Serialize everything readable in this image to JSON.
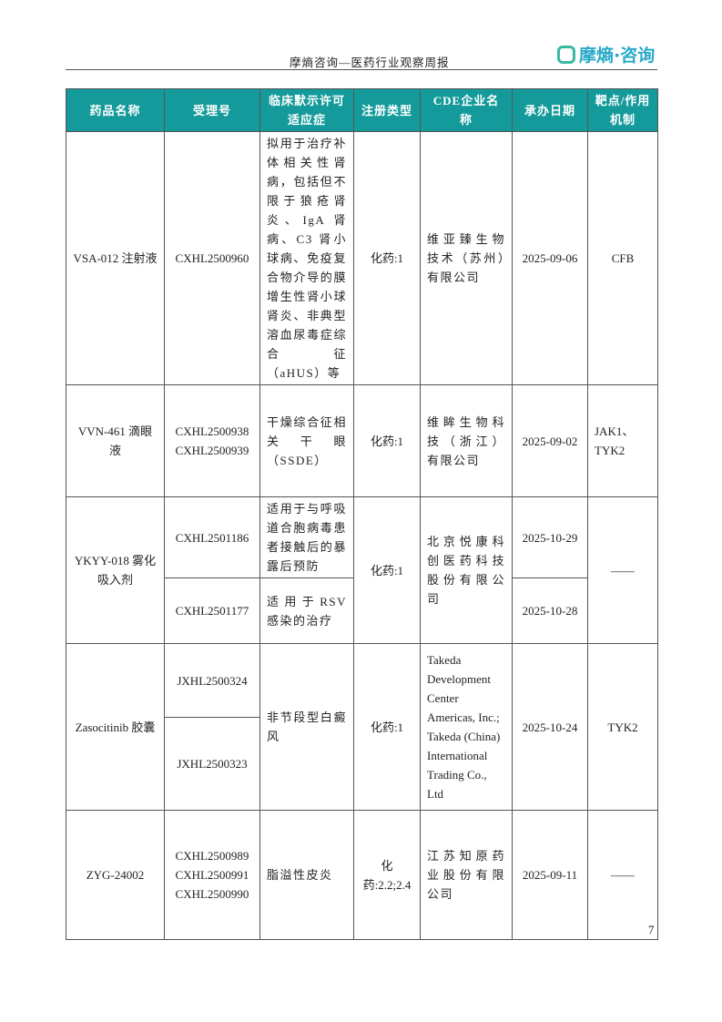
{
  "header": {
    "title": "摩熵咨询—医药行业观察周报",
    "logo": "摩熵·咨询"
  },
  "table": {
    "columns": [
      "药品名称",
      "受理号",
      "临床默示许可适应症",
      "注册类型",
      "CDE企业名称",
      "承办日期",
      "靶点/作用机制"
    ],
    "rows": [
      {
        "drug": "VSA-012 注射液",
        "ids": [
          "CXHL2500960"
        ],
        "indication": "拟用于治疗补体相关性肾病，包括但不限于狼疮肾炎、IgA 肾病、C3 肾小球病、免疫复合物介导的膜增生性肾小球肾炎、非典型溶血尿毒症综合征（aHUS）等",
        "type": "化药:1",
        "company": "维亚臻生物技术（苏州）有限公司",
        "date": "2025-09-06",
        "target": "CFB"
      },
      {
        "drug": "VVN-461 滴眼液",
        "ids": [
          "CXHL2500938",
          "CXHL2500939"
        ],
        "indication": "干燥综合征相关干眼（SSDE）",
        "type": "化药:1",
        "company": "维眸生物科技（浙江）有限公司",
        "date": "2025-09-02",
        "target": "JAK1、TYK2"
      },
      {
        "drug": "YKYY-018 雾化吸入剂",
        "ids": [
          "CXHL2501186",
          "CXHL2501177"
        ],
        "indications": [
          "适用于与呼吸道合胞病毒患者接触后的暴露后预防",
          "适用于RSV 感染的治疗"
        ],
        "type": "化药:1",
        "company": "北京悦康科创医药科技股份有限公司",
        "dates": [
          "2025-10-29",
          "2025-10-28"
        ],
        "target": "——"
      },
      {
        "drug": "Zasocitinib 胶囊",
        "ids": [
          "JXHL2500324",
          "JXHL2500323"
        ],
        "indication": "非节段型白癜风",
        "type": "化药:1",
        "company": "Takeda Development Center Americas, Inc.; Takeda (China) International Trading Co., Ltd",
        "date": "2025-10-24",
        "target": "TYK2"
      },
      {
        "drug": "ZYG-24002",
        "ids": [
          "CXHL2500989",
          "CXHL2500991",
          "CXHL2500990"
        ],
        "indication": "脂溢性皮炎",
        "type": "化药:2.2;2.4",
        "company": "江苏知原药业股份有限公司",
        "date": "2025-09-11",
        "target": "——"
      }
    ]
  },
  "page_number": "7"
}
